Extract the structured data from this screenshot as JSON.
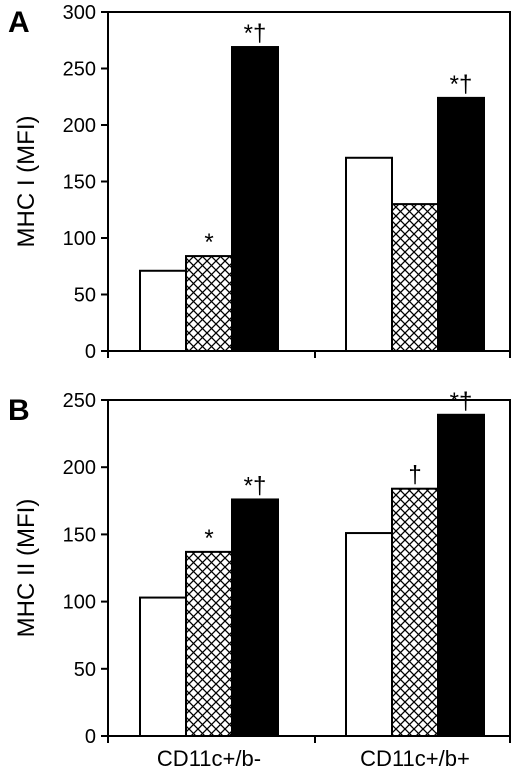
{
  "chart_data": [
    {
      "type": "bar",
      "panel": "A",
      "ylabel": "MHC I (MFI)",
      "ylim": [
        0,
        300
      ],
      "yticks": [
        0,
        50,
        100,
        150,
        200,
        250,
        300
      ],
      "categories": [
        "CD11c+/b-",
        "CD11c+/b+"
      ],
      "series": [
        {
          "values": [
            71,
            171
          ],
          "fill": "white"
        },
        {
          "values": [
            84,
            130
          ],
          "fill": "crosshatch"
        },
        {
          "values": [
            269,
            224
          ],
          "fill": "black"
        }
      ],
      "annotations": [
        [
          "",
          "",
          ""
        ],
        [
          "*",
          "",
          ""
        ],
        [
          "*†",
          "*†",
          ""
        ]
      ],
      "grid": false,
      "legend": "none"
    },
    {
      "type": "bar",
      "panel": "B",
      "ylabel": "MHC II (MFI)",
      "ylim": [
        0,
        250
      ],
      "yticks": [
        0,
        50,
        100,
        150,
        200,
        250
      ],
      "categories": [
        "CD11c+/b-",
        "CD11c+/b+"
      ],
      "series": [
        {
          "values": [
            103,
            151
          ],
          "fill": "white"
        },
        {
          "values": [
            137,
            184
          ],
          "fill": "crosshatch"
        },
        {
          "values": [
            176,
            239
          ],
          "fill": "black"
        }
      ],
      "annotations": [
        [
          "",
          "",
          ""
        ],
        [
          "*",
          "†",
          ""
        ],
        [
          "*†",
          "*†",
          ""
        ]
      ],
      "grid": false,
      "legend": "none"
    }
  ]
}
